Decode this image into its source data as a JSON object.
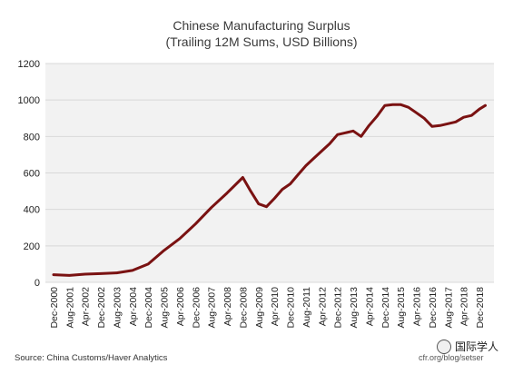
{
  "chart_data": {
    "type": "line",
    "title": "Chinese Manufacturing Surplus",
    "subtitle": "(Trailing 12M Sums, USD Billions)",
    "xlabel": "",
    "ylabel": "",
    "ylim": [
      0,
      1200
    ],
    "yticks": [
      0,
      200,
      400,
      600,
      800,
      1000,
      1200
    ],
    "xticks": [
      "Dec-2000",
      "Aug-2001",
      "Apr-2002",
      "Dec-2002",
      "Aug-2003",
      "Apr-2004",
      "Dec-2004",
      "Aug-2005",
      "Apr-2006",
      "Dec-2006",
      "Aug-2007",
      "Apr-2008",
      "Dec-2008",
      "Aug-2009",
      "Apr-2010",
      "Dec-2010",
      "Aug-2011",
      "Apr-2012",
      "Dec-2012",
      "Aug-2013",
      "Apr-2014",
      "Dec-2014",
      "Aug-2015",
      "Apr-2016",
      "Dec-2016",
      "Aug-2017",
      "Apr-2018",
      "Dec-2018"
    ],
    "grid": "horizontal",
    "legend": "none",
    "line_color": "#7a1212",
    "series": [
      {
        "x": [
          "Dec-2000",
          "Aug-2001",
          "Apr-2002",
          "Dec-2002",
          "Aug-2003",
          "Apr-2004",
          "Dec-2004",
          "Aug-2005",
          "Apr-2006",
          "Dec-2006",
          "Aug-2007",
          "Apr-2008",
          "Dec-2008",
          "Apr-2009",
          "Aug-2009",
          "Dec-2009",
          "Apr-2010",
          "Aug-2010",
          "Dec-2010",
          "Apr-2011",
          "Aug-2011",
          "Dec-2011",
          "Apr-2012",
          "Aug-2012",
          "Dec-2012",
          "Apr-2013",
          "Aug-2013",
          "Dec-2013",
          "Apr-2014",
          "Aug-2014",
          "Dec-2014",
          "Apr-2015",
          "Aug-2015",
          "Dec-2015",
          "Apr-2016",
          "Aug-2016",
          "Dec-2016",
          "Apr-2017",
          "Aug-2017",
          "Dec-2017",
          "Apr-2018",
          "Aug-2018",
          "Dec-2018",
          "Mar-2019"
        ],
        "values": [
          42,
          38,
          45,
          48,
          52,
          65,
          100,
          175,
          240,
          320,
          410,
          490,
          575,
          500,
          430,
          415,
          460,
          510,
          540,
          590,
          640,
          680,
          720,
          760,
          810,
          820,
          830,
          800,
          860,
          910,
          970,
          975,
          975,
          960,
          930,
          900,
          855,
          860,
          870,
          880,
          905,
          915,
          950,
          970
        ]
      }
    ]
  },
  "source": "Source: China Customs/Haver Analytics",
  "credit": "cfr.org/blog/setser",
  "watermark": "国际学人"
}
